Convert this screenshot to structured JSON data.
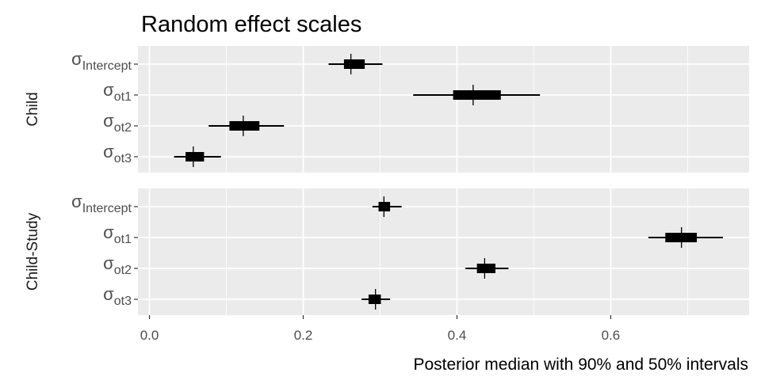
{
  "chart_data": {
    "type": "interval",
    "title": "Random effect scales",
    "xlabel": "Posterior median with 90% and 50% intervals",
    "ylabel": "",
    "xlim": [
      -0.015,
      0.78
    ],
    "x_ticks": [
      0.0,
      0.2,
      0.4,
      0.6
    ],
    "x_tick_labels": [
      "0.0",
      "0.2",
      "0.4",
      "0.6"
    ],
    "grid": true,
    "legend": "none",
    "colors": {
      "panel_bg": "#ebebeb",
      "grid": "#ffffff",
      "mark": "#000000",
      "tick_text": "#4d4d4d"
    },
    "panels": [
      {
        "name": "Child",
        "params": [
          {
            "symbol": "σ",
            "subscript": "Intercept",
            "median": 0.262,
            "q50": [
              0.253,
              0.28
            ],
            "q90": [
              0.233,
              0.303
            ]
          },
          {
            "symbol": "σ",
            "subscript": "ot1",
            "median": 0.421,
            "q50": [
              0.395,
              0.457
            ],
            "q90": [
              0.343,
              0.508
            ]
          },
          {
            "symbol": "σ",
            "subscript": "ot2",
            "median": 0.122,
            "q50": [
              0.104,
              0.143
            ],
            "q90": [
              0.077,
              0.175
            ]
          },
          {
            "symbol": "σ",
            "subscript": "ot3",
            "median": 0.057,
            "q50": [
              0.047,
              0.071
            ],
            "q90": [
              0.032,
              0.093
            ]
          }
        ]
      },
      {
        "name": "Child-Study",
        "params": [
          {
            "symbol": "σ",
            "subscript": "Intercept",
            "median": 0.305,
            "q50": [
              0.298,
              0.313
            ],
            "q90": [
              0.29,
              0.328
            ]
          },
          {
            "symbol": "σ",
            "subscript": "ot1",
            "median": 0.692,
            "q50": [
              0.671,
              0.712
            ],
            "q90": [
              0.649,
              0.746
            ]
          },
          {
            "symbol": "σ",
            "subscript": "ot2",
            "median": 0.436,
            "q50": [
              0.426,
              0.45
            ],
            "q90": [
              0.411,
              0.467
            ]
          },
          {
            "symbol": "σ",
            "subscript": "ot3",
            "median": 0.294,
            "q50": [
              0.285,
              0.301
            ],
            "q90": [
              0.276,
              0.313
            ]
          }
        ]
      }
    ]
  }
}
